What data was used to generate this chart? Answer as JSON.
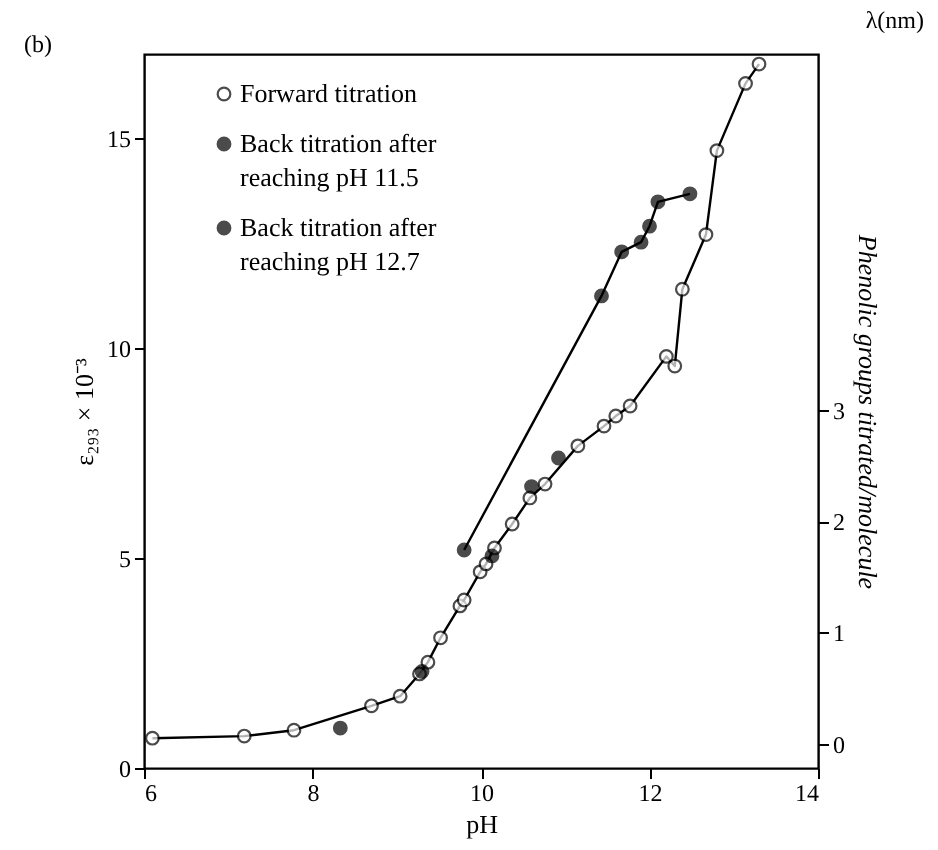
{
  "chart_data": {
    "type": "line",
    "xlabel": "pH",
    "ylabel": "ε₂₉₃ × 10⁻³",
    "y2label": "Phenolic groups titrated/molecule",
    "annotations": [
      "(b)",
      "λ(nm)"
    ],
    "xlim": [
      6,
      14
    ],
    "xticks": [
      6,
      8,
      10,
      12,
      14
    ],
    "ylim": [
      0,
      17
    ],
    "yticks": [
      0,
      5,
      10,
      15
    ],
    "y2lim": [
      -0.22,
      6.2
    ],
    "y2ticks": [
      0,
      1,
      2,
      3
    ],
    "legend": "top left",
    "grid": false,
    "marker": "circle",
    "series": [
      {
        "name": "Forward titration",
        "color": "#000000",
        "x": [
          6.1,
          7.19,
          7.78,
          8.7,
          9.04,
          9.27,
          9.37,
          9.52,
          9.75,
          9.8,
          9.99,
          10.06,
          10.16,
          10.37,
          10.58,
          10.76,
          11.15,
          11.46,
          11.6,
          11.77,
          12.2,
          12.3,
          12.39,
          12.67,
          12.8,
          13.14,
          13.3
        ],
        "values": [
          0.71,
          0.76,
          0.9,
          1.48,
          1.71,
          2.24,
          2.52,
          3.1,
          3.86,
          4.0,
          4.67,
          4.86,
          5.24,
          5.81,
          6.43,
          6.76,
          7.67,
          8.14,
          8.38,
          8.62,
          9.8,
          9.57,
          11.4,
          12.7,
          14.7,
          16.3,
          16.76
        ]
      },
      {
        "name": "Back titration after reaching pH 11.5",
        "type": "scatter",
        "color": "#000000",
        "x": [
          10.92,
          10.6,
          10.13,
          9.3,
          8.33
        ],
        "values": [
          7.38,
          6.7,
          5.05,
          2.3,
          0.95
        ]
      },
      {
        "name": "Back titration after reaching pH 12.7",
        "color": "#000000",
        "x": [
          12.48,
          12.1,
          12.0,
          11.9,
          11.67,
          11.43,
          9.8
        ],
        "values": [
          13.67,
          13.48,
          12.9,
          12.52,
          12.29,
          11.24,
          5.19
        ]
      }
    ]
  }
}
